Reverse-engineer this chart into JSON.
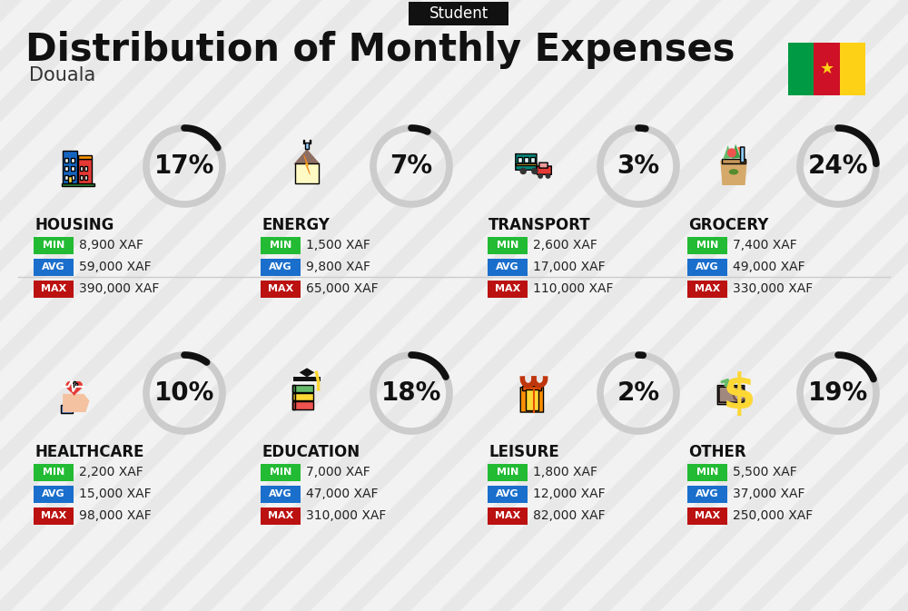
{
  "title": "Distribution of Monthly Expenses",
  "subtitle": "Student",
  "city": "Douala",
  "bg_color": "#f2f2f2",
  "categories": [
    {
      "name": "HOUSING",
      "pct": 17,
      "min_val": "8,900 XAF",
      "avg_val": "59,000 XAF",
      "max_val": "390,000 XAF",
      "row": 0,
      "col": 0
    },
    {
      "name": "ENERGY",
      "pct": 7,
      "min_val": "1,500 XAF",
      "avg_val": "9,800 XAF",
      "max_val": "65,000 XAF",
      "row": 0,
      "col": 1
    },
    {
      "name": "TRANSPORT",
      "pct": 3,
      "min_val": "2,600 XAF",
      "avg_val": "17,000 XAF",
      "max_val": "110,000 XAF",
      "row": 0,
      "col": 2
    },
    {
      "name": "GROCERY",
      "pct": 24,
      "min_val": "7,400 XAF",
      "avg_val": "49,000 XAF",
      "max_val": "330,000 XAF",
      "row": 0,
      "col": 3
    },
    {
      "name": "HEALTHCARE",
      "pct": 10,
      "min_val": "2,200 XAF",
      "avg_val": "15,000 XAF",
      "max_val": "98,000 XAF",
      "row": 1,
      "col": 0
    },
    {
      "name": "EDUCATION",
      "pct": 18,
      "min_val": "7,000 XAF",
      "avg_val": "47,000 XAF",
      "max_val": "310,000 XAF",
      "row": 1,
      "col": 1
    },
    {
      "name": "LEISURE",
      "pct": 2,
      "min_val": "1,800 XAF",
      "avg_val": "12,000 XAF",
      "max_val": "82,000 XAF",
      "row": 1,
      "col": 2
    },
    {
      "name": "OTHER",
      "pct": 19,
      "min_val": "5,500 XAF",
      "avg_val": "37,000 XAF",
      "max_val": "250,000 XAF",
      "row": 1,
      "col": 3
    }
  ],
  "min_color": "#22bb33",
  "avg_color": "#1a6fcc",
  "max_color": "#bb1111",
  "donut_gray": "#cccccc",
  "donut_dark": "#111111",
  "title_fontsize": 30,
  "pct_fontsize": 20,
  "name_fontsize": 12,
  "val_fontsize": 10,
  "badge_label_fontsize": 8
}
